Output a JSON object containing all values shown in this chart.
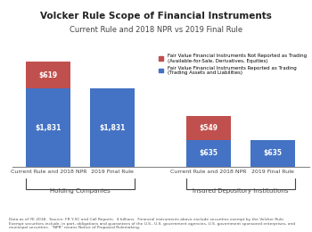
{
  "title": "Volcker Rule Scope of Financial Instruments",
  "subtitle": "Current Rule and 2018 NPR vs 2019 Final Rule",
  "groups": [
    "Holding Companies",
    "Insured Depository Institutions"
  ],
  "bars": [
    {
      "label": "Current Rule and 2018 NPR",
      "group": "Holding Companies",
      "blue": 1831,
      "red": 619
    },
    {
      "label": "2019 Final Rule",
      "group": "Holding Companies",
      "blue": 1831,
      "red": 0
    },
    {
      "label": "Current Rule and 2018 NPR",
      "group": "Insured Depository Institutions",
      "blue": 635,
      "red": 549
    },
    {
      "label": "2019 Final Rule",
      "group": "Insured Depository Institutions",
      "blue": 635,
      "red": 0
    }
  ],
  "blue_color": "#4472C4",
  "red_color": "#C0504D",
  "legend_red": "Fair Value Financial Instruments Not Reported as Trading\n(Available-for-Sale, Derivatives, Equities)",
  "legend_blue": "Fair Value Financial Instruments Reported as Trading\n(Trading Assets and Liabilities)",
  "footnote": "Data as of YE 2018.  Source: FR Y-9C and Call Reports.  $ billions.  Financial instruments above exclude securities exempt by the Volcker Rule.\nExempt securities include, in part, obligations and guarantees of the U.S., U.S. government agencies, U.S. government sponsored enterprises, and\nmunicipal securities.  \"NPR\" means Notice of Proposed Rulemaking.",
  "bar_positions": [
    0.5,
    1.5,
    3.0,
    4.0
  ],
  "bar_width": 0.7,
  "ylim": [
    0,
    2700
  ],
  "background_color": "#ffffff"
}
